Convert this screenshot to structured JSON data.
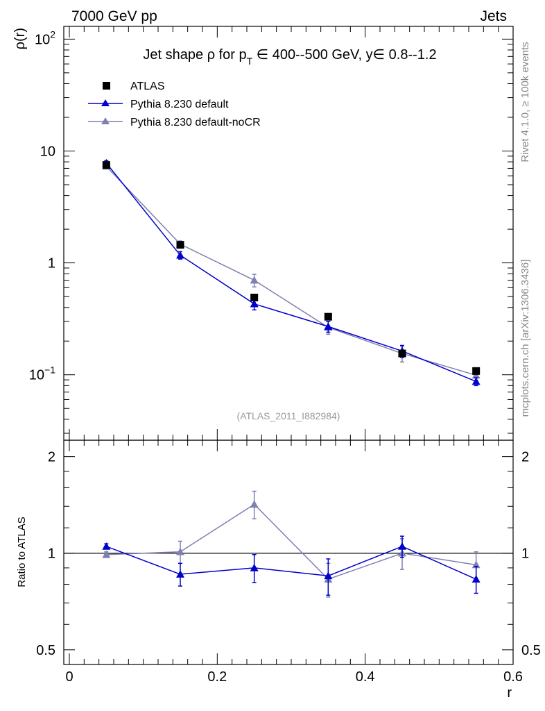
{
  "header": {
    "left": "7000 GeV pp",
    "right": "Jets"
  },
  "side_labels": {
    "rivet": "Rivet 4.1.0, ≥ 100k events",
    "mcplots": "mcplots.cern.ch [arXiv:1306.3436]"
  },
  "colors": {
    "data": "#000000",
    "default": "#0000cc",
    "nocr": "#7f7fb2",
    "axis": "#000000",
    "watermark": "#999999"
  },
  "chart_data": {
    "type": "line",
    "title": {
      "prefix": "Jet shape ρ for p",
      "subscript": "T",
      "suffix": " ∈ 400--500 GeV, y∈ 0.8--1.2"
    },
    "analysis_tag": "(ATLAS_2011_I882984)",
    "xlabel": "r",
    "ylabel": "ρ(r)",
    "ratio_ylabel": "Ratio to ATLAS",
    "xlim": [
      0,
      0.6
    ],
    "ylim_log": [
      0.026,
      130
    ],
    "ratio_ylim": [
      0.45,
      2.25
    ],
    "x_ticks": [
      0,
      0.2,
      0.4,
      0.6
    ],
    "x_tick_labels": [
      "0",
      "0.2",
      "0.4",
      "0.6"
    ],
    "y_ticks": [
      {
        "value": 100,
        "base": "10",
        "exp": "2"
      },
      {
        "value": 10,
        "base": "10",
        "exp": ""
      },
      {
        "value": 1,
        "base": "1",
        "exp": ""
      },
      {
        "value": 0.1,
        "base": "10",
        "exp": "−1"
      }
    ],
    "ratio_ticks": [
      0.5,
      1,
      2
    ],
    "ratio_tick_labels": [
      "0.5",
      "1",
      "2"
    ],
    "x": [
      0.05,
      0.15,
      0.25,
      0.35,
      0.45,
      0.55
    ],
    "series": [
      {
        "name": "ATLAS",
        "key": "data",
        "marker": "square",
        "values": [
          7.5,
          1.45,
          0.49,
          0.33,
          0.155,
          0.108
        ]
      },
      {
        "name": "Pythia 8.230 default",
        "key": "default",
        "marker": "triangle",
        "values": [
          7.8,
          1.17,
          0.43,
          0.27,
          0.163,
          0.087
        ],
        "err": [
          0.4,
          0.09,
          0.05,
          0.03,
          0.02,
          0.007
        ],
        "ratio": [
          1.05,
          0.86,
          0.9,
          0.85,
          1.05,
          0.83
        ],
        "ratio_err": [
          0.02,
          0.07,
          0.09,
          0.11,
          0.08,
          0.08
        ]
      },
      {
        "name": "Pythia 8.230 default-noCR",
        "key": "nocr",
        "marker": "triangle",
        "values": [
          7.3,
          1.47,
          0.7,
          0.265,
          0.155,
          0.099
        ],
        "err": [
          0.3,
          0.1,
          0.09,
          0.035,
          0.025,
          0.01
        ],
        "ratio": [
          0.99,
          1.01,
          1.42,
          0.83,
          1.0,
          0.92
        ],
        "ratio_err": [
          0.02,
          0.08,
          0.14,
          0.1,
          0.11,
          0.09
        ]
      }
    ]
  }
}
